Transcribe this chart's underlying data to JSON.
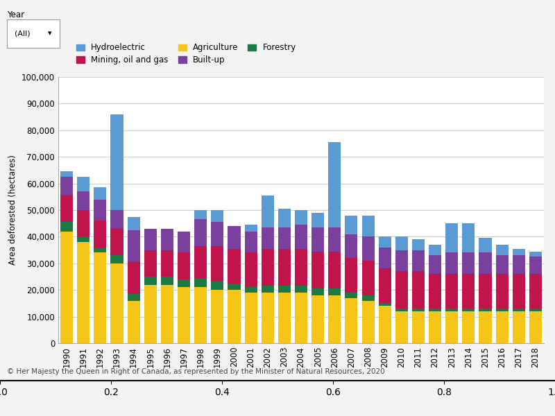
{
  "years": [
    1990,
    1991,
    1992,
    1993,
    1994,
    1995,
    1996,
    1997,
    1998,
    1999,
    2000,
    2001,
    2002,
    2003,
    2004,
    2005,
    2006,
    2007,
    2008,
    2009,
    2010,
    2011,
    2012,
    2013,
    2014,
    2015,
    2016,
    2017,
    2018
  ],
  "agriculture": [
    42000,
    38000,
    34000,
    30000,
    16000,
    22000,
    22000,
    21000,
    21000,
    20000,
    20000,
    19000,
    19000,
    19000,
    19000,
    18000,
    18000,
    17000,
    16000,
    14000,
    12000,
    12000,
    12000,
    12000,
    12000,
    12000,
    12000,
    12000,
    12000
  ],
  "forestry": [
    3500,
    2000,
    2000,
    3000,
    2500,
    3000,
    3000,
    3000,
    3500,
    3500,
    2500,
    2000,
    2500,
    2500,
    2500,
    2500,
    2500,
    2000,
    2000,
    1000,
    1000,
    1000,
    1000,
    1000,
    1000,
    1000,
    1000,
    1000,
    1000
  ],
  "mining": [
    10000,
    10000,
    10000,
    10000,
    12000,
    10000,
    10000,
    10000,
    12000,
    13000,
    13000,
    13000,
    14000,
    14000,
    14000,
    14000,
    14000,
    13000,
    13000,
    13000,
    14000,
    14000,
    13000,
    13000,
    13000,
    13000,
    13000,
    13000,
    13000
  ],
  "builtup": [
    7000,
    7000,
    8000,
    7000,
    12000,
    8000,
    8000,
    8000,
    10000,
    9000,
    8500,
    8000,
    8000,
    8000,
    9000,
    9000,
    9000,
    9000,
    9000,
    8000,
    8000,
    8000,
    7000,
    8000,
    8000,
    8000,
    7000,
    7000,
    6500
  ],
  "hydro": [
    2000,
    5500,
    4500,
    36000,
    5000,
    0,
    0,
    0,
    3500,
    4500,
    0,
    2500,
    12000,
    7000,
    5500,
    5500,
    32000,
    7000,
    8000,
    4000,
    5000,
    4000,
    4000,
    11000,
    11000,
    5500,
    4000,
    2500,
    2000
  ],
  "colors": {
    "agriculture": "#F5C518",
    "forestry": "#1a7a42",
    "mining": "#C0144A",
    "builtup": "#7B3F9E",
    "hydro": "#5B9BD5"
  },
  "ylabel": "Area deforested (hectares)",
  "ylim": [
    0,
    100000
  ],
  "yticks": [
    0,
    10000,
    20000,
    30000,
    40000,
    50000,
    60000,
    70000,
    80000,
    90000,
    100000
  ],
  "ytick_labels": [
    "0",
    "10,000",
    "20,000",
    "30,000",
    "40,000",
    "50,000",
    "60,000",
    "70,000",
    "80,000",
    "90,000",
    "100,000"
  ],
  "legend_entries": [
    {
      "label": "Hydroelectric",
      "color": "#5B9BD5"
    },
    {
      "label": "Mining, oil and gas",
      "color": "#C0144A"
    },
    {
      "label": "Agriculture",
      "color": "#F5C518"
    },
    {
      "label": "Built-up",
      "color": "#7B3F9E"
    },
    {
      "label": "Forestry",
      "color": "#1a7a42"
    }
  ],
  "footer": "© Her Majesty the Queen in Right of Canada, as represented by the Minister of Natural Resources, 2020",
  "background_color": "#f3f3f3",
  "plot_bg": "#ffffff",
  "bar_width": 0.75
}
